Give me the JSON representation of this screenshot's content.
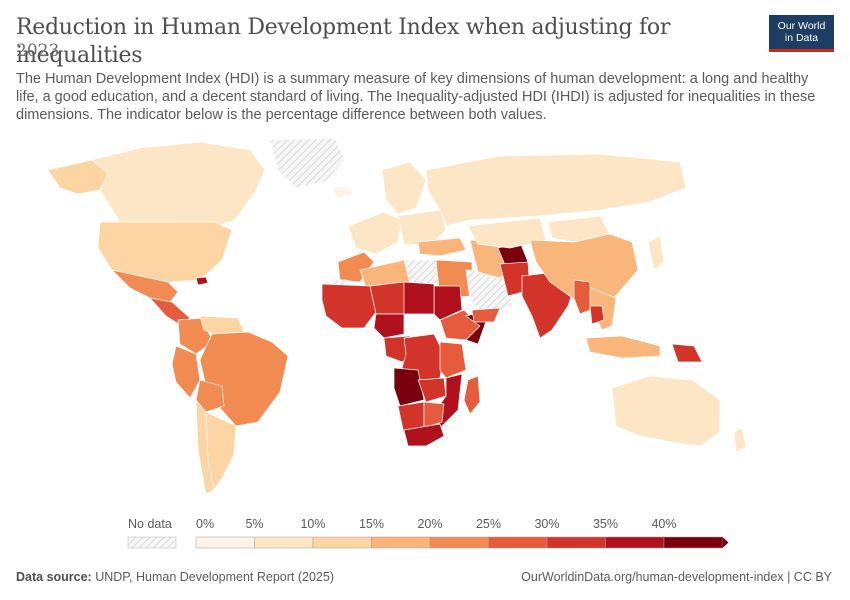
{
  "header": {
    "title": "Reduction in Human Development Index when adjusting for inequalities",
    "year": "2023",
    "description": "The Human Development Index (HDI) is a summary measure of key dimensions of human development: a long and healthy life, a good education, and a decent standard of living. The Inequality-adjusted HDI (IHDI) is adjusted for inequalities in these dimensions. The indicator below is the percentage difference between both values."
  },
  "logo": {
    "line1": "Our World",
    "line2": "in Data"
  },
  "legend": {
    "no_data_label": "No data",
    "bins": [
      {
        "label": "0%",
        "color": "#fff2e6"
      },
      {
        "label": "5%",
        "color": "#fde6c5"
      },
      {
        "label": "10%",
        "color": "#fcd5a3"
      },
      {
        "label": "15%",
        "color": "#f9b57a"
      },
      {
        "label": "20%",
        "color": "#f28b52"
      },
      {
        "label": "25%",
        "color": "#e55b3b"
      },
      {
        "label": "30%",
        "color": "#d2342a"
      },
      {
        "label": "35%",
        "color": "#b1111c"
      },
      {
        "label": "40%",
        "color": "#7a000d"
      }
    ]
  },
  "map_regions": [
    {
      "name": "Canada",
      "value": 7
    },
    {
      "name": "Alaska",
      "value": 12
    },
    {
      "name": "United States",
      "value": 13
    },
    {
      "name": "Greenland",
      "value": null
    },
    {
      "name": "Mexico",
      "value": 20
    },
    {
      "name": "Central America",
      "value": 27
    },
    {
      "name": "Haiti",
      "value": 37
    },
    {
      "name": "Colombia",
      "value": 22
    },
    {
      "name": "Venezuela",
      "value": 14
    },
    {
      "name": "Brazil",
      "value": 22
    },
    {
      "name": "Peru",
      "value": 20
    },
    {
      "name": "Bolivia",
      "value": 23
    },
    {
      "name": "Argentina",
      "value": 13
    },
    {
      "name": "Chile",
      "value": 11
    },
    {
      "name": "Iceland",
      "value": 4
    },
    {
      "name": "Scandinavia",
      "value": 5
    },
    {
      "name": "Western Europe",
      "value": 7
    },
    {
      "name": "Eastern Europe",
      "value": 9
    },
    {
      "name": "Russia",
      "value": 8
    },
    {
      "name": "Turkey",
      "value": 16
    },
    {
      "name": "Morocco",
      "value": 24
    },
    {
      "name": "Algeria",
      "value": 18
    },
    {
      "name": "Western Sahara",
      "value": null
    },
    {
      "name": "Libya",
      "value": null
    },
    {
      "name": "Egypt",
      "value": 22
    },
    {
      "name": "West Africa",
      "value": 34
    },
    {
      "name": "Sahel",
      "value": 33
    },
    {
      "name": "Sudan",
      "value": 36
    },
    {
      "name": "Chad",
      "value": 38
    },
    {
      "name": "Nigeria",
      "value": 36
    },
    {
      "name": "Ethiopia",
      "value": 27
    },
    {
      "name": "Somalia",
      "value": 44
    },
    {
      "name": "Saudi Arabia",
      "value": null
    },
    {
      "name": "Yemen",
      "value": 28
    },
    {
      "name": "Iran",
      "value": 16
    },
    {
      "name": "Afghanistan",
      "value": 42
    },
    {
      "name": "Pakistan",
      "value": 31
    },
    {
      "name": "India",
      "value": 30
    },
    {
      "name": "Central Asia",
      "value": 9
    },
    {
      "name": "Mongolia",
      "value": 9
    },
    {
      "name": "China",
      "value": 15
    },
    {
      "name": "Japan",
      "value": 6
    },
    {
      "name": "Southeast Asia",
      "value": 17
    },
    {
      "name": "Myanmar",
      "value": 27
    },
    {
      "name": "Cambodia",
      "value": 33
    },
    {
      "name": "Indonesia",
      "value": 18
    },
    {
      "name": "Papua New Guinea",
      "value": 33
    },
    {
      "name": "Australia",
      "value": 7
    },
    {
      "name": "New Zealand",
      "value": 7
    },
    {
      "name": "Central Africa",
      "value": 32
    },
    {
      "name": "DR Congo",
      "value": 34
    },
    {
      "name": "Angola",
      "value": 43
    },
    {
      "name": "Tanzania",
      "value": 27
    },
    {
      "name": "Mozambique",
      "value": 36
    },
    {
      "name": "Zambia",
      "value": 33
    },
    {
      "name": "Namibia",
      "value": 30
    },
    {
      "name": "Botswana",
      "value": 28
    },
    {
      "name": "South Africa",
      "value": 36
    },
    {
      "name": "Madagascar",
      "value": 27
    }
  ],
  "footer": {
    "source_label": "Data source:",
    "source_text": "UNDP, Human Development Report (2025)",
    "url": "OurWorldinData.org/human-development-index",
    "license": "CC BY"
  }
}
